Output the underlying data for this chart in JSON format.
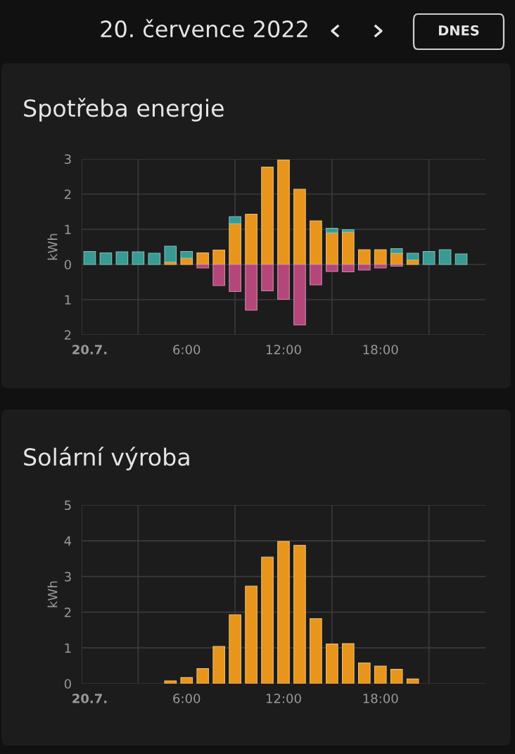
{
  "chart_data": [
    {
      "type": "bar",
      "title": "Spotřeba energie",
      "ylabel": "kWh",
      "stacked": true,
      "grid": true,
      "annotations": [
        "20. července 2022",
        "DNES"
      ],
      "x": [
        "2022-07-20T00:00",
        "2022-07-20T01:00",
        "2022-07-20T02:00",
        "2022-07-20T03:00",
        "2022-07-20T04:00",
        "2022-07-20T05:00",
        "2022-07-20T06:00",
        "2022-07-20T07:00",
        "2022-07-20T08:00",
        "2022-07-20T09:00",
        "2022-07-20T10:00",
        "2022-07-20T11:00",
        "2022-07-20T12:00",
        "2022-07-20T13:00",
        "2022-07-20T14:00",
        "2022-07-20T15:00",
        "2022-07-20T16:00",
        "2022-07-20T17:00",
        "2022-07-20T18:00",
        "2022-07-20T19:00",
        "2022-07-20T20:00",
        "2022-07-20T21:00",
        "2022-07-20T22:00",
        "2022-07-20T23:00"
      ],
      "xlim": [
        "2022-07-19T23:30",
        "2022-07-21T00:30"
      ],
      "xticks": [
        {
          "value": "2022-07-20T00:00",
          "label": "20.7."
        },
        {
          "value": "2022-07-20T03:00",
          "label": null
        },
        {
          "value": "2022-07-20T06:00",
          "label": "6:00"
        },
        {
          "value": "2022-07-20T09:00",
          "label": null
        },
        {
          "value": "2022-07-20T12:00",
          "label": "12:00"
        },
        {
          "value": "2022-07-20T15:00",
          "label": null
        },
        {
          "value": "2022-07-20T18:00",
          "label": "18:00"
        },
        {
          "value": "2022-07-20T21:00",
          "label": null
        }
      ],
      "ylim": [
        -2,
        3
      ],
      "yticks": [
        {
          "value": -2,
          "label": "2"
        },
        {
          "value": -1,
          "label": "1"
        },
        0,
        1,
        2,
        3
      ],
      "series": [
        {
          "color": "#e8951c",
          "values": [
            0,
            0,
            0,
            0,
            0,
            0.07,
            0.18,
            0.33,
            0.41,
            1.16,
            1.43,
            2.77,
            2.97,
            2.14,
            1.24,
            0.9,
            0.92,
            0.42,
            0.42,
            0.32,
            0.13,
            0,
            0,
            0
          ]
        },
        {
          "color": "#3a9a93",
          "values": [
            0.37,
            0.33,
            0.36,
            0.36,
            0.32,
            0.45,
            0.19,
            0,
            0,
            0.2,
            0,
            0,
            0,
            0,
            0,
            0.13,
            0.07,
            0,
            0,
            0.13,
            0.19,
            0.37,
            0.42,
            0.3
          ]
        },
        {
          "color": "#b3477a",
          "values": [
            0,
            0,
            0,
            0,
            0,
            0,
            0,
            -0.1,
            -0.6,
            -0.77,
            -1.3,
            -0.75,
            -0.99,
            -1.72,
            -0.58,
            -0.2,
            -0.21,
            -0.16,
            -0.1,
            -0.05,
            0,
            0,
            0,
            0
          ]
        }
      ]
    },
    {
      "type": "bar",
      "title": "Solární výroba",
      "ylabel": "kWh",
      "grid": true,
      "x": [
        "2022-07-20T05:00",
        "2022-07-20T06:00",
        "2022-07-20T07:00",
        "2022-07-20T08:00",
        "2022-07-20T09:00",
        "2022-07-20T10:00",
        "2022-07-20T11:00",
        "2022-07-20T12:00",
        "2022-07-20T13:00",
        "2022-07-20T14:00",
        "2022-07-20T15:00",
        "2022-07-20T16:00",
        "2022-07-20T17:00",
        "2022-07-20T18:00",
        "2022-07-20T19:00",
        "2022-07-20T20:00"
      ],
      "xlim": [
        "2022-07-19T23:30",
        "2022-07-21T00:30"
      ],
      "xticks": [
        {
          "value": "2022-07-20T00:00",
          "label": "20.7."
        },
        {
          "value": "2022-07-20T03:00",
          "label": null
        },
        {
          "value": "2022-07-20T06:00",
          "label": "6:00"
        },
        {
          "value": "2022-07-20T09:00",
          "label": null
        },
        {
          "value": "2022-07-20T12:00",
          "label": "12:00"
        },
        {
          "value": "2022-07-20T15:00",
          "label": null
        },
        {
          "value": "2022-07-20T18:00",
          "label": "18:00"
        },
        {
          "value": "2022-07-20T21:00",
          "label": null
        }
      ],
      "ylim": [
        0,
        5
      ],
      "yticks": [
        0,
        1,
        2,
        3,
        4,
        5
      ],
      "series": [
        {
          "color": "#e8951c",
          "values": [
            0.08,
            0.17,
            0.42,
            1.04,
            1.93,
            2.73,
            3.54,
            3.98,
            3.87,
            1.82,
            1.11,
            1.12,
            0.58,
            0.49,
            0.4,
            0.13
          ]
        }
      ]
    }
  ]
}
